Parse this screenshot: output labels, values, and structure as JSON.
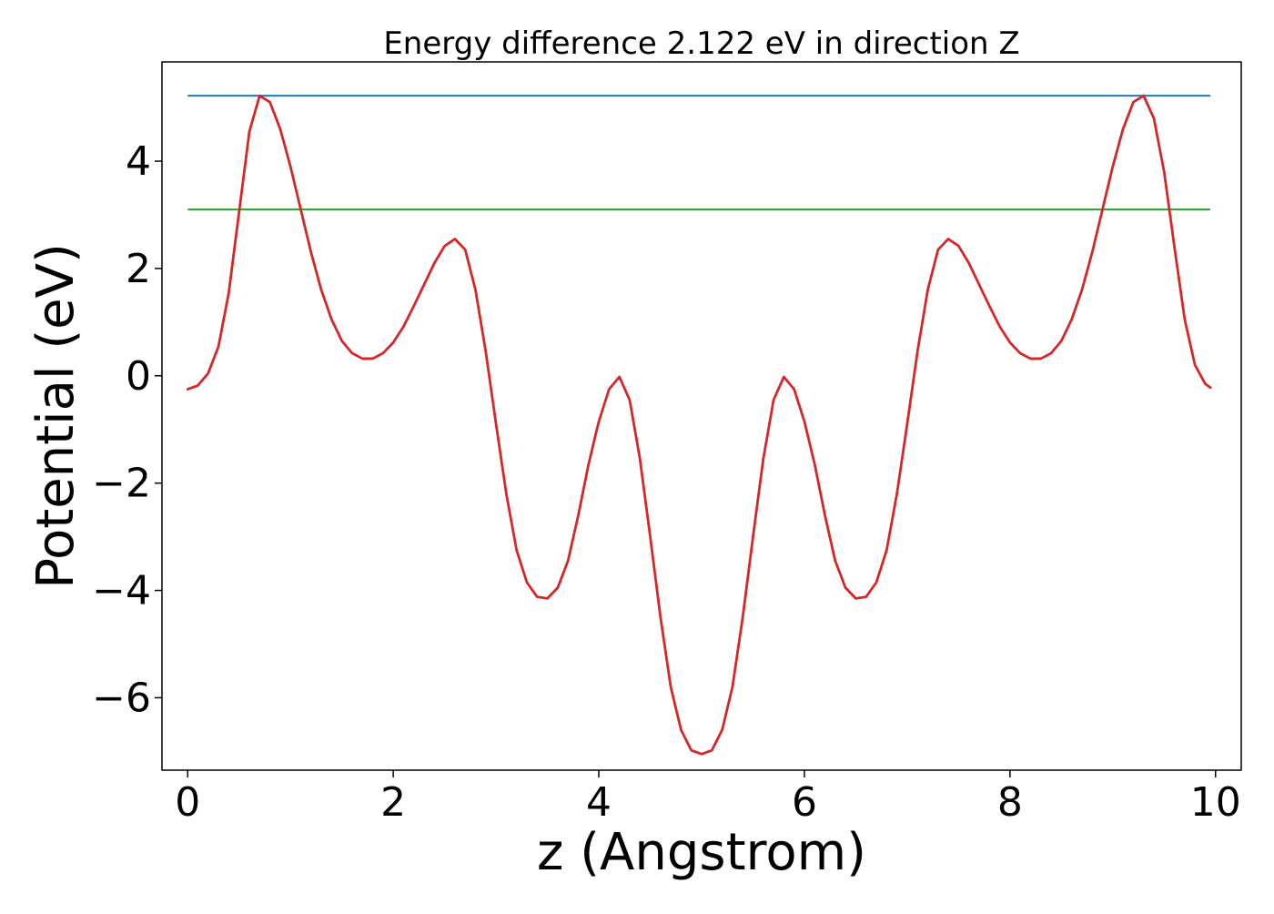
{
  "chart_data": {
    "type": "line",
    "title": "Energy difference 2.122 eV in direction Z",
    "xlabel": "z (Angstrom)",
    "ylabel": "Potential (eV)",
    "xlim": [
      -0.25,
      10.25
    ],
    "ylim": [
      -7.35,
      5.85
    ],
    "x_ticks": [
      0,
      2,
      4,
      6,
      8,
      10
    ],
    "y_ticks": [
      -6,
      -4,
      -2,
      0,
      2,
      4
    ],
    "grid": false,
    "legend": "none",
    "series": [
      {
        "kind": "hline",
        "color": "#1f77b4",
        "y": 5.22,
        "x_range": [
          0,
          9.95
        ]
      },
      {
        "kind": "hline",
        "color": "#2ca02c",
        "y": 3.1,
        "x_range": [
          0,
          9.95
        ]
      },
      {
        "kind": "line",
        "color": "#d62728",
        "points": [
          [
            0.0,
            -0.25
          ],
          [
            0.1,
            -0.18
          ],
          [
            0.2,
            0.05
          ],
          [
            0.3,
            0.55
          ],
          [
            0.4,
            1.55
          ],
          [
            0.5,
            3.05
          ],
          [
            0.6,
            4.55
          ],
          [
            0.7,
            5.22
          ],
          [
            0.8,
            5.1
          ],
          [
            0.9,
            4.6
          ],
          [
            1.0,
            3.9
          ],
          [
            1.1,
            3.1
          ],
          [
            1.2,
            2.3
          ],
          [
            1.3,
            1.6
          ],
          [
            1.4,
            1.05
          ],
          [
            1.5,
            0.65
          ],
          [
            1.6,
            0.42
          ],
          [
            1.7,
            0.32
          ],
          [
            1.8,
            0.32
          ],
          [
            1.9,
            0.42
          ],
          [
            2.0,
            0.62
          ],
          [
            2.1,
            0.92
          ],
          [
            2.2,
            1.3
          ],
          [
            2.3,
            1.7
          ],
          [
            2.4,
            2.1
          ],
          [
            2.5,
            2.42
          ],
          [
            2.6,
            2.55
          ],
          [
            2.7,
            2.35
          ],
          [
            2.8,
            1.6
          ],
          [
            2.9,
            0.45
          ],
          [
            3.0,
            -0.9
          ],
          [
            3.1,
            -2.2
          ],
          [
            3.2,
            -3.25
          ],
          [
            3.3,
            -3.85
          ],
          [
            3.4,
            -4.12
          ],
          [
            3.5,
            -4.15
          ],
          [
            3.6,
            -3.95
          ],
          [
            3.7,
            -3.45
          ],
          [
            3.8,
            -2.6
          ],
          [
            3.9,
            -1.65
          ],
          [
            4.0,
            -0.85
          ],
          [
            4.1,
            -0.25
          ],
          [
            4.2,
            -0.02
          ],
          [
            4.3,
            -0.45
          ],
          [
            4.4,
            -1.55
          ],
          [
            4.5,
            -3.0
          ],
          [
            4.6,
            -4.5
          ],
          [
            4.7,
            -5.8
          ],
          [
            4.8,
            -6.6
          ],
          [
            4.9,
            -6.98
          ],
          [
            5.0,
            -7.05
          ],
          [
            5.1,
            -6.98
          ],
          [
            5.2,
            -6.6
          ],
          [
            5.3,
            -5.8
          ],
          [
            5.4,
            -4.5
          ],
          [
            5.5,
            -3.0
          ],
          [
            5.6,
            -1.55
          ],
          [
            5.7,
            -0.45
          ],
          [
            5.8,
            -0.02
          ],
          [
            5.9,
            -0.25
          ],
          [
            6.0,
            -0.85
          ],
          [
            6.1,
            -1.65
          ],
          [
            6.2,
            -2.6
          ],
          [
            6.3,
            -3.45
          ],
          [
            6.4,
            -3.95
          ],
          [
            6.5,
            -4.15
          ],
          [
            6.6,
            -4.12
          ],
          [
            6.7,
            -3.85
          ],
          [
            6.8,
            -3.25
          ],
          [
            6.9,
            -2.2
          ],
          [
            7.0,
            -0.9
          ],
          [
            7.1,
            0.45
          ],
          [
            7.2,
            1.6
          ],
          [
            7.3,
            2.35
          ],
          [
            7.4,
            2.55
          ],
          [
            7.5,
            2.42
          ],
          [
            7.6,
            2.1
          ],
          [
            7.7,
            1.7
          ],
          [
            7.8,
            1.3
          ],
          [
            7.9,
            0.92
          ],
          [
            8.0,
            0.62
          ],
          [
            8.1,
            0.42
          ],
          [
            8.2,
            0.32
          ],
          [
            8.3,
            0.32
          ],
          [
            8.4,
            0.42
          ],
          [
            8.5,
            0.65
          ],
          [
            8.6,
            1.05
          ],
          [
            8.7,
            1.6
          ],
          [
            8.8,
            2.3
          ],
          [
            8.9,
            3.1
          ],
          [
            9.0,
            3.9
          ],
          [
            9.1,
            4.6
          ],
          [
            9.2,
            5.1
          ],
          [
            9.3,
            5.22
          ],
          [
            9.4,
            4.8
          ],
          [
            9.5,
            3.8
          ],
          [
            9.6,
            2.4
          ],
          [
            9.7,
            1.05
          ],
          [
            9.8,
            0.2
          ],
          [
            9.9,
            -0.15
          ],
          [
            9.95,
            -0.22
          ]
        ]
      }
    ]
  }
}
